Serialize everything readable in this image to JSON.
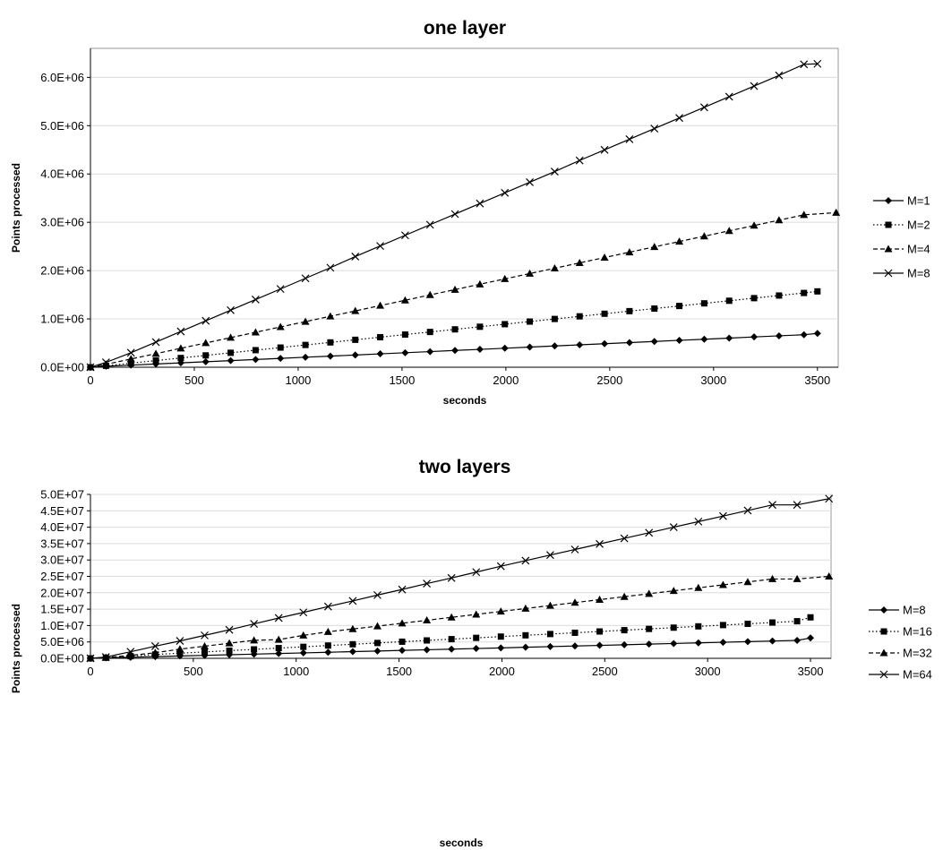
{
  "chart_data": [
    {
      "type": "line",
      "title": "one layer",
      "xlabel": "seconds",
      "ylabel": "Points processed",
      "xlim": [
        0,
        3600
      ],
      "ylim": [
        0,
        6600000
      ],
      "x_ticks": [
        0,
        500,
        1000,
        1500,
        2000,
        2500,
        3000,
        3500
      ],
      "x_tick_labels": [
        "0",
        "500",
        "1000",
        "1500",
        "2000",
        "2500",
        "3000",
        "3500"
      ],
      "y_ticks": [
        0,
        1000000,
        2000000,
        3000000,
        4000000,
        5000000,
        6000000
      ],
      "y_tick_labels": [
        "0.0E+00",
        "1.0E+06",
        "2.0E+06",
        "3.0E+06",
        "4.0E+06",
        "5.0E+06",
        "6.0E+06"
      ],
      "grid": true,
      "legend_position": "right",
      "x": [
        0,
        75,
        195,
        315,
        435,
        555,
        675,
        795,
        915,
        1035,
        1155,
        1275,
        1395,
        1515,
        1635,
        1755,
        1875,
        1995,
        2115,
        2235,
        2355,
        2475,
        2595,
        2715,
        2835,
        2955,
        3075,
        3195,
        3315,
        3435,
        3500,
        3590
      ],
      "series": [
        {
          "name": "M=1",
          "marker": "diamond",
          "dash": "solid",
          "x_max": 3500,
          "values": [
            0,
            20000,
            43000,
            67000,
            90000,
            113000,
            137000,
            160000,
            183000,
            207000,
            230000,
            253000,
            277000,
            300000,
            323000,
            347000,
            370000,
            393000,
            417000,
            440000,
            463000,
            487000,
            510000,
            533000,
            557000,
            580000,
            603000,
            627000,
            650000,
            673000,
            700000,
            null
          ]
        },
        {
          "name": "M=2",
          "marker": "square",
          "dash": "dotted",
          "x_max": 3500,
          "values": [
            0,
            30000,
            84000,
            138000,
            191000,
            245000,
            299000,
            353000,
            407000,
            461000,
            514000,
            568000,
            622000,
            676000,
            730000,
            784000,
            838000,
            891000,
            945000,
            999000,
            1053000,
            1107000,
            1161000,
            1214000,
            1268000,
            1322000,
            1376000,
            1430000,
            1484000,
            1537000,
            1570000,
            null
          ]
        },
        {
          "name": "M=4",
          "marker": "triangle",
          "dash": "dashed",
          "x_max": 3590,
          "values": [
            0,
            60000,
            171000,
            281000,
            392000,
            502000,
            613000,
            723000,
            834000,
            944000,
            1055000,
            1165000,
            1276000,
            1386000,
            1497000,
            1607000,
            1718000,
            1828000,
            1939000,
            2049000,
            2160000,
            2270000,
            2381000,
            2491000,
            2602000,
            2712000,
            2823000,
            2933000,
            3044000,
            3154000,
            null,
            3200000
          ]
        },
        {
          "name": "M=8",
          "marker": "x",
          "dash": "solid",
          "x_max": 3500,
          "values": [
            0,
            100000,
            300000,
            520000,
            740000,
            960000,
            1180000,
            1400000,
            1620000,
            1840000,
            2060000,
            2290000,
            2510000,
            2730000,
            2950000,
            3170000,
            3390000,
            3610000,
            3830000,
            4050000,
            4280000,
            4500000,
            4720000,
            4940000,
            5160000,
            5380000,
            5600000,
            5820000,
            6040000,
            6270000,
            6280000,
            null
          ]
        }
      ]
    },
    {
      "type": "line",
      "title": "two layers",
      "xlabel": "seconds",
      "ylabel": "Points processed",
      "xlim": [
        0,
        3600
      ],
      "ylim": [
        0,
        50000000
      ],
      "x_ticks": [
        0,
        500,
        1000,
        1500,
        2000,
        2500,
        3000,
        3500
      ],
      "x_tick_labels": [
        "0",
        "500",
        "1000",
        "1500",
        "2000",
        "2500",
        "3000",
        "3500"
      ],
      "y_ticks": [
        0,
        5000000,
        10000000,
        15000000,
        20000000,
        25000000,
        30000000,
        35000000,
        40000000,
        45000000,
        50000000
      ],
      "y_tick_labels": [
        "0.0E+00",
        "5.0E+06",
        "1.0E+07",
        "1.5E+07",
        "2.0E+07",
        "2.5E+07",
        "3.0E+07",
        "3.5E+07",
        "4.0E+07",
        "4.5E+07",
        "5.0E+07"
      ],
      "grid": true,
      "legend_position": "right",
      "x": [
        0,
        75,
        195,
        315,
        435,
        555,
        675,
        795,
        915,
        1035,
        1155,
        1275,
        1395,
        1515,
        1635,
        1755,
        1875,
        1995,
        2115,
        2235,
        2355,
        2475,
        2595,
        2715,
        2835,
        2955,
        3075,
        3195,
        3315,
        3435,
        3500,
        3590
      ],
      "series": [
        {
          "name": "M=8",
          "marker": "diamond",
          "dash": "solid",
          "x_max": 3500,
          "values": [
            0,
            150000,
            320000,
            520000,
            710000,
            900000,
            1090000,
            1280000,
            1470000,
            1660000,
            1850000,
            2040000,
            2230000,
            2420000,
            2610000,
            2800000,
            2990000,
            3180000,
            3380000,
            3570000,
            3760000,
            3950000,
            4140000,
            4330000,
            4520000,
            4710000,
            4900000,
            5090000,
            5280000,
            5470000,
            6200000,
            null
          ]
        },
        {
          "name": "M=16",
          "marker": "square",
          "dash": "dotted",
          "x_max": 3500,
          "values": [
            0,
            200000,
            640000,
            1170000,
            1560000,
            1950000,
            2340000,
            2730000,
            3120000,
            3510000,
            3900000,
            4290000,
            4680000,
            5070000,
            5460000,
            5850000,
            6240000,
            6630000,
            7020000,
            7410000,
            7800000,
            8190000,
            8580000,
            8970000,
            9360000,
            9750000,
            10140000,
            10530000,
            10920000,
            11310000,
            12500000,
            null
          ]
        },
        {
          "name": "M=32",
          "marker": "triangle",
          "dash": "dashed",
          "x_max": 3590,
          "values": [
            0,
            250000,
            900000,
            1700000,
            2800000,
            3700000,
            4600000,
            5500000,
            5700000,
            7000000,
            8100000,
            8950000,
            9800000,
            10700000,
            11600000,
            12500000,
            13400000,
            14300000,
            15200000,
            16100000,
            17000000,
            17900000,
            18800000,
            19700000,
            20600000,
            21500000,
            22400000,
            23300000,
            24200000,
            24200000,
            null,
            25000000
          ]
        },
        {
          "name": "M=64",
          "marker": "x",
          "dash": "solid",
          "x_max": 3590,
          "values": [
            0,
            400000,
            2000000,
            3700000,
            5300000,
            7000000,
            8700000,
            10500000,
            12300000,
            14000000,
            15800000,
            17500000,
            19300000,
            21000000,
            22800000,
            24500000,
            26300000,
            28100000,
            29800000,
            31500000,
            33200000,
            34900000,
            36600000,
            38300000,
            40000000,
            41700000,
            43400000,
            45100000,
            46800000,
            46800000,
            null,
            48700000
          ]
        }
      ]
    }
  ]
}
